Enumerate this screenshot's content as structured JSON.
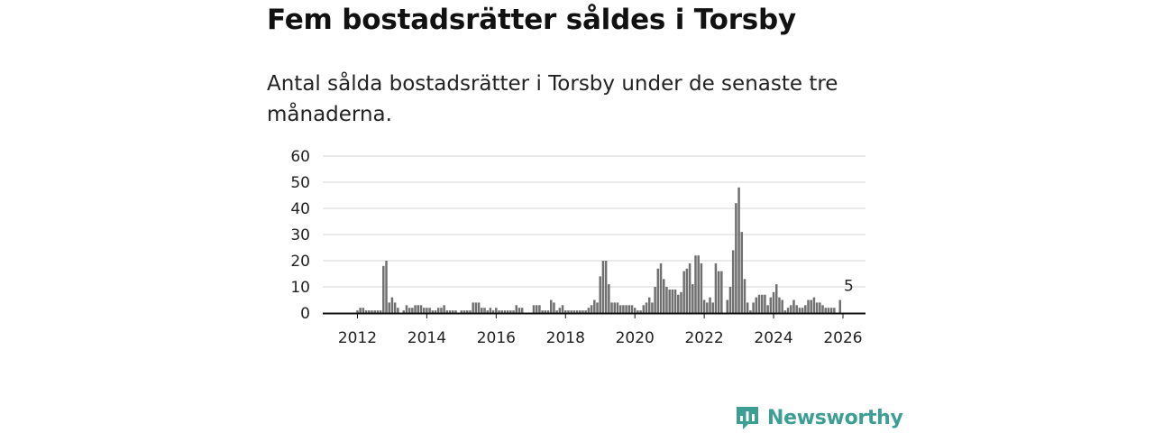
{
  "title": "Fem bostadsrätter såldes i Torsby",
  "subtitle": "Antal sålda bostadsrätter i Torsby under de senaste tre månaderna.",
  "logo": {
    "text": "Newsworthy",
    "icon": "newsworthy-logo-icon"
  },
  "colors": {
    "bar": "#707070",
    "highlight": "#1aa59a",
    "grid": "#d6d6d6",
    "axis": "#111111",
    "brand": "#3d9e93"
  },
  "chart_data": {
    "type": "bar",
    "title": "Fem bostadsrätter såldes i Torsby",
    "xlabel": "",
    "ylabel": "",
    "x_start": 2011.0,
    "x_step": 0.08333,
    "x_range": [
      2011.0,
      2027.0
    ],
    "ylim": [
      0,
      60
    ],
    "y_ticks": [
      0,
      10,
      20,
      30,
      40,
      50,
      60
    ],
    "x_ticks": [
      2012,
      2014,
      2016,
      2018,
      2020,
      2022,
      2024,
      2026
    ],
    "grid": true,
    "values": [
      0,
      0,
      0,
      0,
      0,
      0,
      0,
      0,
      0,
      0,
      0,
      0,
      1,
      2,
      2,
      1,
      1,
      1,
      1,
      1,
      1,
      18,
      20,
      4,
      6,
      4,
      2,
      0,
      1,
      3,
      2,
      2,
      3,
      3,
      3,
      2,
      2,
      2,
      1,
      1,
      2,
      2,
      3,
      1,
      1,
      1,
      1,
      0,
      1,
      1,
      1,
      1,
      4,
      4,
      4,
      2,
      2,
      1,
      2,
      1,
      2,
      1,
      1,
      1,
      1,
      1,
      1,
      3,
      2,
      2,
      0,
      0,
      0,
      3,
      3,
      3,
      1,
      1,
      1,
      5,
      4,
      1,
      2,
      3,
      1,
      1,
      1,
      1,
      1,
      1,
      1,
      1,
      2,
      3,
      5,
      4,
      14,
      20,
      20,
      11,
      4,
      4,
      4,
      3,
      3,
      3,
      3,
      3,
      2,
      1,
      1,
      3,
      4,
      6,
      4,
      10,
      17,
      19,
      13,
      10,
      9,
      9,
      9,
      7,
      8,
      16,
      17,
      19,
      11,
      22,
      22,
      19,
      5,
      4,
      6,
      4,
      19,
      16,
      16,
      0,
      5,
      10,
      24,
      42,
      48,
      31,
      13,
      4,
      1,
      4,
      6,
      7,
      7,
      7,
      3,
      6,
      8,
      11,
      6,
      5,
      1,
      2,
      3,
      5,
      3,
      2,
      2,
      3,
      5,
      5,
      6,
      4,
      4,
      3,
      2,
      2,
      2,
      2,
      0,
      5
    ],
    "highlight_index": 182,
    "highlight_label": "5",
    "highlight_value": 5
  }
}
